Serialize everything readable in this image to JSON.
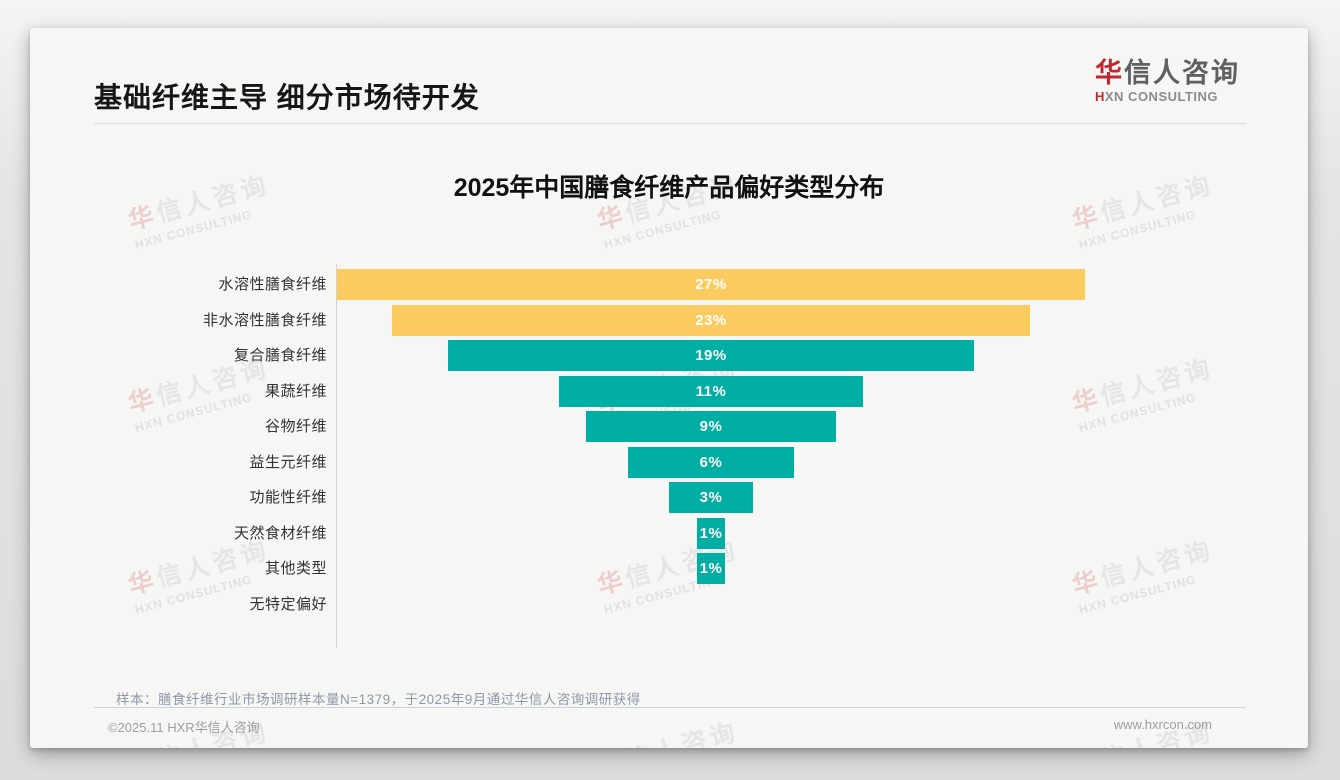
{
  "header": {
    "title": "基础纤维主导 细分市场待开发",
    "logo": {
      "cn_first": "华",
      "cn_rest": "信人咨询",
      "en_first": "H",
      "en_rest": "XN CONSULTING"
    }
  },
  "chart": {
    "title": "2025年中国膳食纤维产品偏好类型分布"
  },
  "chart_data": {
    "type": "bar",
    "orientation": "horizontal-funnel-centered",
    "title": "2025年中国膳食纤维产品偏好类型分布",
    "categories": [
      "水溶性膳食纤维",
      "非水溶性膳食纤维",
      "复合膳食纤维",
      "果蔬纤维",
      "谷物纤维",
      "益生元纤维",
      "功能性纤维",
      "天然食材纤维",
      "其他类型",
      "无特定偏好"
    ],
    "values": [
      27,
      23,
      19,
      11,
      9,
      6,
      3,
      1,
      1,
      0
    ],
    "data_labels": [
      "27%",
      "23%",
      "19%",
      "11%",
      "9%",
      "6%",
      "3%",
      "1%",
      "1%",
      ""
    ],
    "bar_colors": [
      "#fbcb5f",
      "#fbcb5f",
      "#00aea4",
      "#00aea4",
      "#00aea4",
      "#00aea4",
      "#00aea4",
      "#00aea4",
      "#00aea4",
      "#00aea4"
    ],
    "accent_yellow": "#fbcb5f",
    "accent_teal": "#00aea4",
    "xlabel": "",
    "ylabel": "",
    "xlim": [
      0,
      27
    ],
    "grid": false,
    "legend": false,
    "unit": "%"
  },
  "watermark": {
    "cn_first": "华",
    "cn_rest": "信人咨询",
    "en": "HXN CONSULTING"
  },
  "footnote": {
    "text": "样本：膳食纤维行业市场调研样本量N=1379，于2025年9月通过华信人咨询调研获得"
  },
  "footer": {
    "copyright": "©2025.11 HXR华信人咨询",
    "website": "www.hxrcon.com"
  }
}
